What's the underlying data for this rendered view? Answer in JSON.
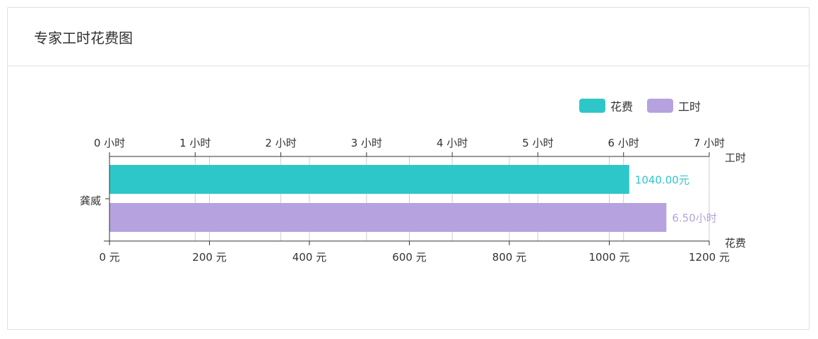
{
  "card": {
    "title": "专家工时花费图"
  },
  "colors": {
    "cost": "#2ec7c9",
    "hours": "#b6a2de",
    "axis": "#333333",
    "grid": "#cccccc"
  },
  "chart_data": {
    "type": "bar",
    "orientation": "horizontal",
    "categories": [
      "龚威"
    ],
    "legend_position": "top-right",
    "series": [
      {
        "name": "花费",
        "axis": "bottom",
        "values": [
          1040
        ],
        "label": "1040.00元",
        "color": "#2ec7c9"
      },
      {
        "name": "工时",
        "axis": "top",
        "values": [
          6.5
        ],
        "label": "6.50小时",
        "color": "#b6a2de"
      }
    ],
    "x_axes": {
      "bottom": {
        "name": "花费",
        "range": [
          0,
          1200
        ],
        "ticks": [
          "0 元",
          "200 元",
          "400 元",
          "600 元",
          "800 元",
          "1000 元",
          "1200 元"
        ]
      },
      "top": {
        "name": "工时",
        "range": [
          0,
          7
        ],
        "ticks": [
          "0 小时",
          "1 小时",
          "2 小时",
          "3 小时",
          "4 小时",
          "5 小时",
          "6 小时",
          "7 小时"
        ]
      }
    },
    "grid": true
  }
}
